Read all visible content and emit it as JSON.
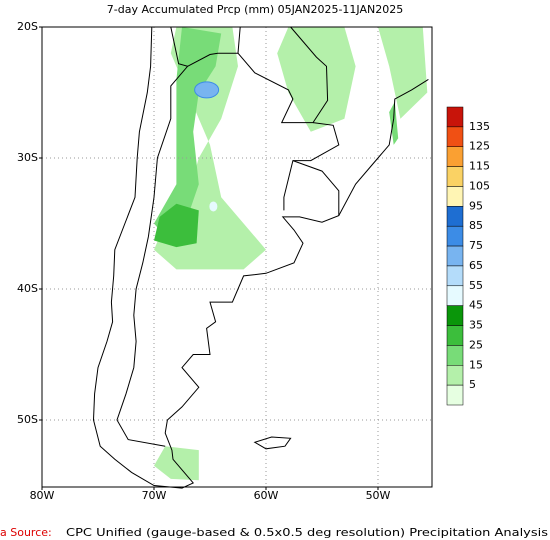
{
  "title": "7-day Accumulated Prcp (mm) 05JAN2025-11JAN2025",
  "lat_labels": [
    "20S",
    "30S",
    "40S",
    "50S"
  ],
  "lon_labels": [
    "80W",
    "70W",
    "60W",
    "50W"
  ],
  "legend": {
    "labels": [
      "135",
      "125",
      "115",
      "105",
      "95",
      "85",
      "75",
      "65",
      "55",
      "45",
      "35",
      "25",
      "15",
      "5"
    ],
    "colors": [
      "#c8140a",
      "#f05014",
      "#faa032",
      "#fad264",
      "#fff5b4",
      "#1e6ed2",
      "#3c8ce6",
      "#78b4f0",
      "#b4dcfa",
      "#e6faff",
      "#0a960a",
      "#3cbe3c",
      "#78dc78",
      "#b4f0aa",
      "#e6ffe1"
    ]
  },
  "source": {
    "label": "a Source:",
    "text": "CPC Unified (gauge-based & 0.5x0.5 deg resolution) Precipitation Analysis"
  }
}
